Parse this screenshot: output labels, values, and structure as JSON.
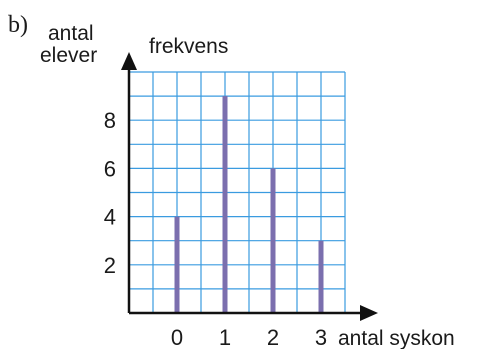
{
  "panel_label": "b)",
  "chart_data": {
    "type": "bar",
    "title": "",
    "ylabel_lines": [
      "antal",
      "elever"
    ],
    "ylabel_alt": "frekvens",
    "xlabel": "antal syskon",
    "categories": [
      "0",
      "1",
      "2",
      "3"
    ],
    "values": [
      4,
      9,
      6,
      3
    ],
    "x_ticks": [
      "0",
      "1",
      "2",
      "3"
    ],
    "y_ticks": [
      "2",
      "4",
      "6",
      "8"
    ],
    "ylim": [
      0,
      10
    ],
    "grid": true,
    "colors": {
      "bar": "#7b6fae",
      "grid": "#3a9be0",
      "axis": "#111111"
    }
  }
}
